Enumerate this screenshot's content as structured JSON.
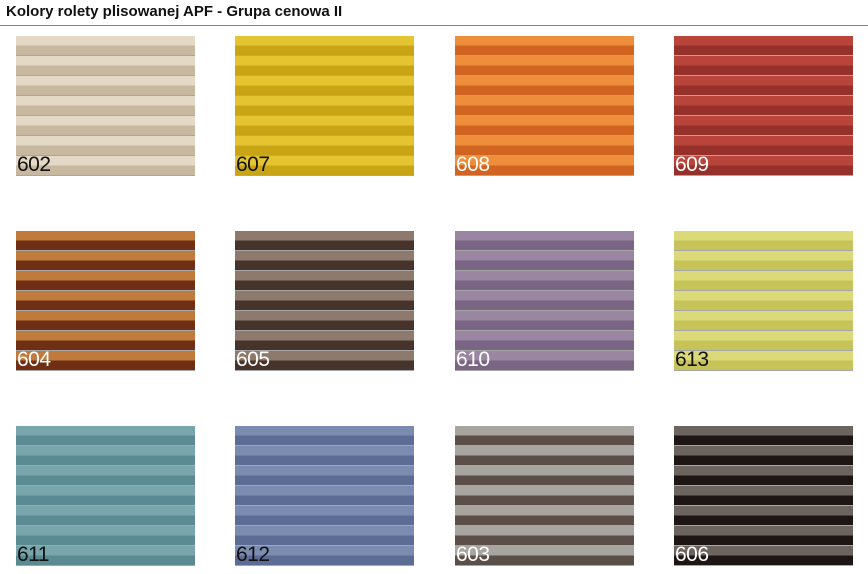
{
  "header": {
    "title": "Kolory rolety plisowanej APF - Grupa cenowa II"
  },
  "swatches": [
    {
      "code": "602",
      "light": "#e4d9c6",
      "dark": "#c9b8a0",
      "label_color": "#111111"
    },
    {
      "code": "607",
      "light": "#e4c430",
      "dark": "#c9a516",
      "label_color": "#111111"
    },
    {
      "code": "608",
      "light": "#ee8e3a",
      "dark": "#d06420",
      "label_color": "#ffffff"
    },
    {
      "code": "609",
      "light": "#b9453a",
      "dark": "#96302a",
      "label_color": "#ffffff"
    },
    {
      "code": "604",
      "light": "#c07a3c",
      "dark": "#6e2f14",
      "label_color": "#ffffff"
    },
    {
      "code": "605",
      "light": "#8e7a6c",
      "dark": "#46342c",
      "label_color": "#ffffff"
    },
    {
      "code": "610",
      "light": "#9a86a2",
      "dark": "#7a6684",
      "label_color": "#ffffff"
    },
    {
      "code": "613",
      "light": "#dbd978",
      "dark": "#c6c458",
      "label_color": "#111111"
    },
    {
      "code": "611",
      "light": "#78a6ac",
      "dark": "#5a8a92",
      "label_color": "#111111"
    },
    {
      "code": "612",
      "light": "#7c8cb0",
      "dark": "#5c6c94",
      "label_color": "#111111"
    },
    {
      "code": "603",
      "light": "#a8a4a0",
      "dark": "#5c4e48",
      "label_color": "#ffffff"
    },
    {
      "code": "606",
      "light": "#6c645e",
      "dark": "#1e1614",
      "label_color": "#ffffff"
    }
  ]
}
